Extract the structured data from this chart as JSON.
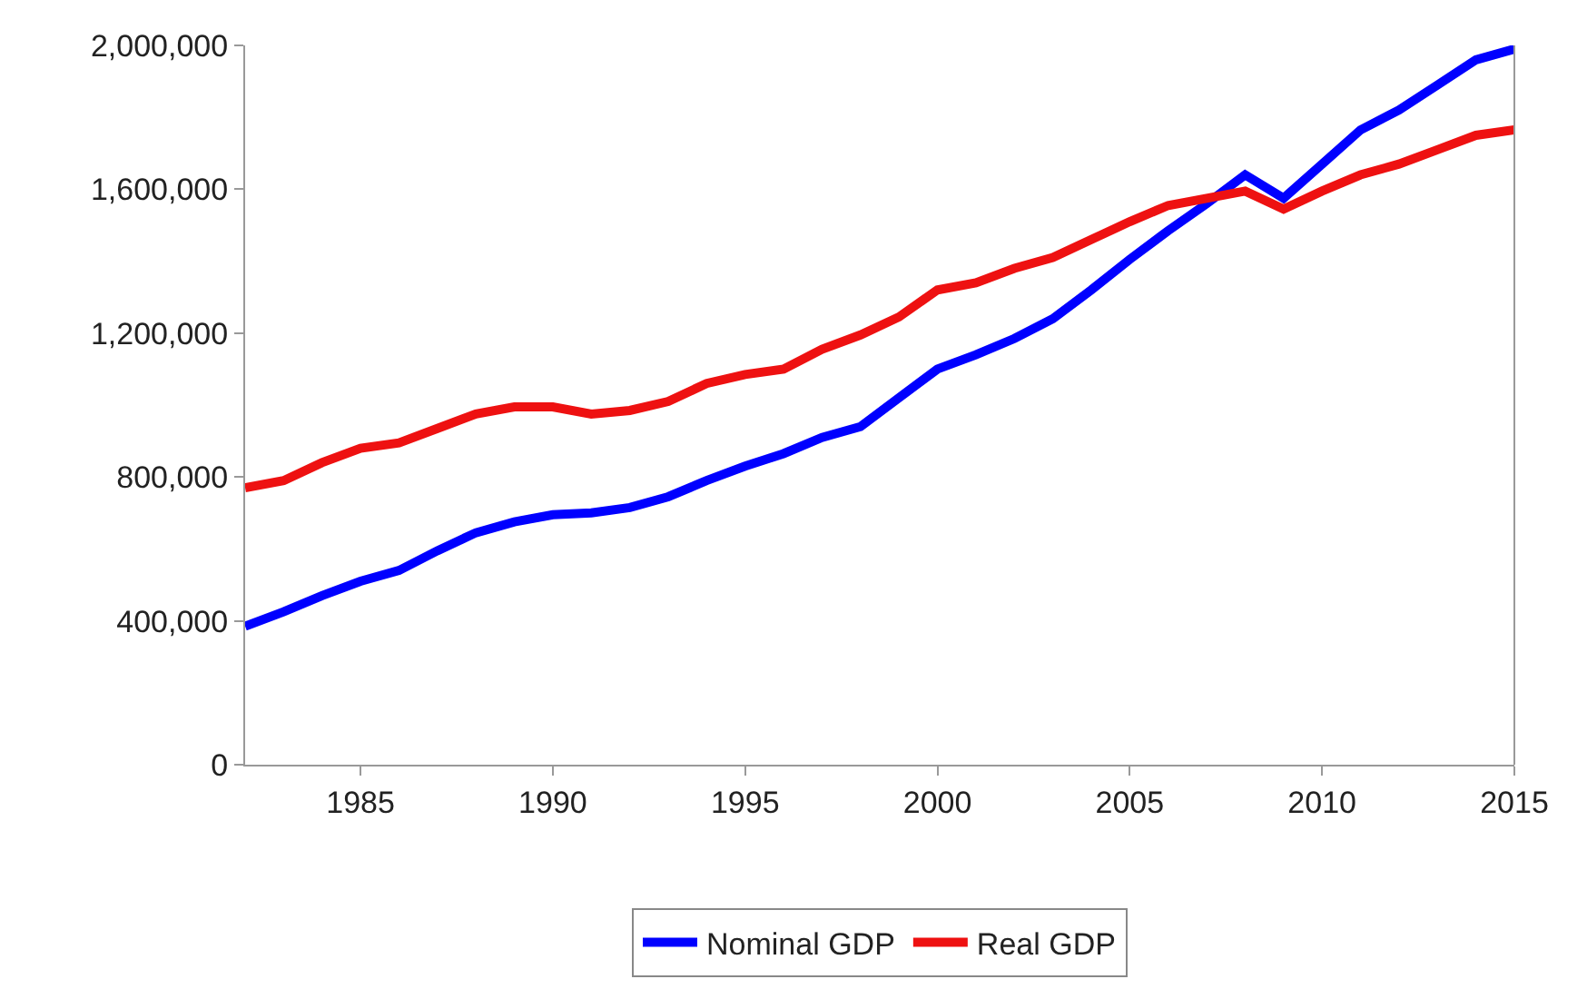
{
  "chart_data": {
    "type": "line",
    "x": [
      1982,
      1983,
      1984,
      1985,
      1986,
      1987,
      1988,
      1989,
      1990,
      1991,
      1992,
      1993,
      1994,
      1995,
      1996,
      1997,
      1998,
      1999,
      2000,
      2001,
      2002,
      2003,
      2004,
      2005,
      2006,
      2007,
      2008,
      2009,
      2010,
      2011,
      2012,
      2013,
      2014,
      2015
    ],
    "series": [
      {
        "name": "Nominal GDP",
        "color": "#0000ff",
        "values": [
          385000,
          425000,
          470000,
          510000,
          540000,
          595000,
          645000,
          675000,
          695000,
          700000,
          715000,
          745000,
          790000,
          830000,
          865000,
          910000,
          940000,
          1020000,
          1100000,
          1140000,
          1185000,
          1240000,
          1320000,
          1405000,
          1485000,
          1560000,
          1640000,
          1575000,
          1670000,
          1765000,
          1820000,
          1890000,
          1960000,
          1990000
        ]
      },
      {
        "name": "Real GDP",
        "color": "#ee1111",
        "values": [
          770000,
          790000,
          840000,
          880000,
          895000,
          935000,
          975000,
          995000,
          995000,
          975000,
          985000,
          1010000,
          1060000,
          1085000,
          1100000,
          1155000,
          1195000,
          1245000,
          1320000,
          1340000,
          1380000,
          1410000,
          1460000,
          1510000,
          1555000,
          1575000,
          1595000,
          1545000,
          1595000,
          1640000,
          1670000,
          1710000,
          1750000,
          1765000
        ]
      }
    ],
    "xlim": [
      1982,
      2015
    ],
    "xticks": [
      1985,
      1990,
      1995,
      2000,
      2005,
      2010,
      2015
    ],
    "ylim": [
      0,
      2000000
    ],
    "yticks": [
      {
        "value": 0,
        "label": "0"
      },
      {
        "value": 400000,
        "label": "400,000"
      },
      {
        "value": 800000,
        "label": "800,000"
      },
      {
        "value": 1200000,
        "label": "1,200,000"
      },
      {
        "value": 1600000,
        "label": "1,600,000"
      },
      {
        "value": 2000000,
        "label": "2,000,000"
      }
    ],
    "legend": "bottom",
    "line_style": "solid",
    "marker": "none"
  }
}
